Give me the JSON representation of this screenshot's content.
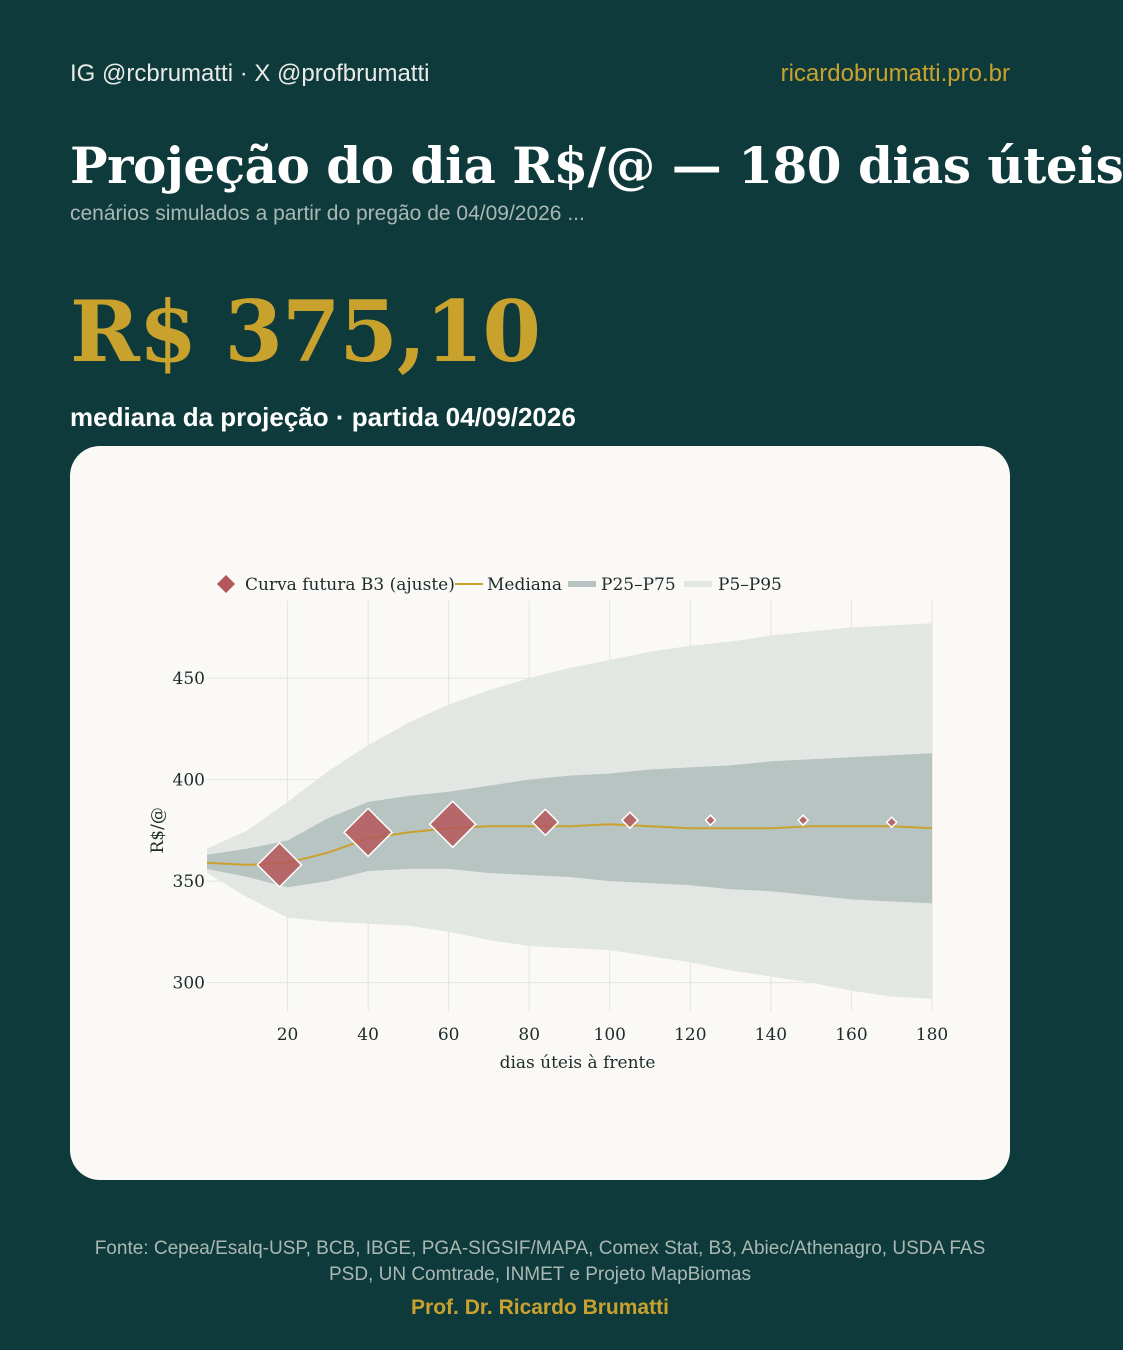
{
  "header": {
    "handles": "IG @rcbrumatti · X @profbrumatti",
    "site": "ricardobrumatti.pro.br"
  },
  "title": "Projeção do dia R$/@ — 180 dias úteis",
  "subtitle": "cenários simulados a partir do pregão de 04/09/2026 ...",
  "headline_value": "R$ 375,10",
  "headline_caption": "mediana da projeção · partida 04/09/2026",
  "footer": {
    "sources": "Fonte: Cepea/Esalq-USP, BCB, IBGE, PGA-SIGSIF/MAPA, Comex Stat, B3, Abiec/Athenagro, USDA FAS PSD, UN Comtrade, INMET e Projeto MapBiomas",
    "author": "Prof. Dr. Ricardo Brumatti"
  },
  "colors": {
    "background": "#0f3a3b",
    "accent": "#c9a22e",
    "card": "#faf9f5",
    "median": "#c9a22e",
    "band_p25_p75": "#b7c4c1",
    "band_p5_p95": "#e3e7e3",
    "futures_marker": "#b5575a"
  },
  "chart_data": {
    "type": "line",
    "xlabel": "dias úteis à frente",
    "ylabel": "R$/@",
    "xlim": [
      0,
      180
    ],
    "ylim": [
      286,
      488
    ],
    "xticks": [
      20,
      40,
      60,
      80,
      100,
      120,
      140,
      160,
      180
    ],
    "yticks": [
      300,
      350,
      400,
      450
    ],
    "grid": true,
    "legend_position": "top",
    "legend": [
      {
        "label": "Curva futura B3 (ajuste)",
        "kind": "marker"
      },
      {
        "label": "Mediana",
        "kind": "line"
      },
      {
        "label": "P25–P75",
        "kind": "band"
      },
      {
        "label": "P5–P95",
        "kind": "band"
      }
    ],
    "x": [
      0,
      10,
      20,
      30,
      40,
      50,
      60,
      70,
      80,
      90,
      100,
      110,
      120,
      130,
      140,
      150,
      160,
      170,
      180
    ],
    "median": [
      359,
      358,
      359,
      364,
      371,
      374,
      376,
      377,
      377,
      377,
      378,
      377,
      376,
      376,
      376,
      377,
      377,
      377,
      376
    ],
    "p25": [
      356,
      352,
      347,
      350,
      355,
      356,
      356,
      354,
      353,
      352,
      350,
      349,
      348,
      346,
      345,
      343,
      341,
      340,
      339
    ],
    "p75": [
      363,
      366,
      370,
      381,
      389,
      392,
      394,
      397,
      400,
      402,
      403,
      405,
      406,
      407,
      409,
      410,
      411,
      412,
      413
    ],
    "p5": [
      354,
      342,
      332,
      330,
      329,
      328,
      325,
      321,
      318,
      317,
      316,
      313,
      310,
      306,
      303,
      300,
      296,
      293,
      292
    ],
    "p95": [
      366,
      375,
      389,
      404,
      417,
      428,
      437,
      444,
      450,
      455,
      459,
      463,
      466,
      468,
      471,
      473,
      475,
      476,
      477
    ],
    "futures": [
      {
        "x": 18,
        "y": 358,
        "size": 22
      },
      {
        "x": 40,
        "y": 374,
        "size": 24
      },
      {
        "x": 61,
        "y": 378,
        "size": 23
      },
      {
        "x": 84,
        "y": 379,
        "size": 13
      },
      {
        "x": 105,
        "y": 380,
        "size": 8
      },
      {
        "x": 125,
        "y": 380,
        "size": 5
      },
      {
        "x": 148,
        "y": 380,
        "size": 5
      },
      {
        "x": 170,
        "y": 379,
        "size": 5
      }
    ]
  }
}
